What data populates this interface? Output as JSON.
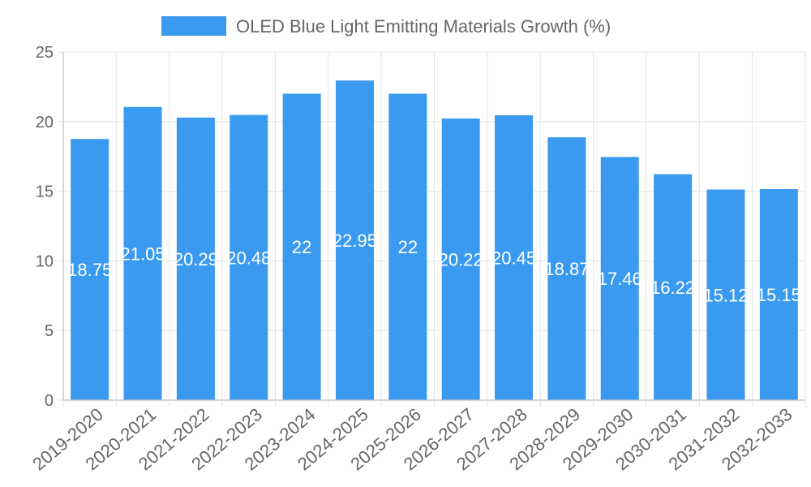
{
  "chart_data": {
    "type": "bar",
    "title": "",
    "xlabel": "",
    "ylabel": "",
    "categories": [
      "2019-2020",
      "2020-2021",
      "2021-2022",
      "2022-2023",
      "2023-2024",
      "2024-2025",
      "2025-2026",
      "2026-2027",
      "2027-2028",
      "2028-2029",
      "2029-2030",
      "2030-2031",
      "2031-2032",
      "2032-2033"
    ],
    "series": [
      {
        "name": "OLED Blue Light Emitting Materials Growth (%)",
        "color": "#3a9af0",
        "values": [
          18.75,
          21.05,
          20.29,
          20.48,
          22,
          22.95,
          22,
          20.22,
          20.45,
          18.87,
          17.46,
          16.22,
          15.12,
          15.15
        ],
        "value_labels": [
          "18.75",
          "21.05",
          "20.29",
          "20.48",
          "22",
          "22.95",
          "22",
          "20.22",
          "20.45",
          "18.87",
          "17.46",
          "16.22",
          "15.12",
          "15.15"
        ]
      }
    ],
    "ylim": [
      0,
      25
    ],
    "yticks": [
      0,
      5,
      10,
      15,
      20,
      25
    ],
    "grid": true,
    "legend_position": "top-center"
  }
}
